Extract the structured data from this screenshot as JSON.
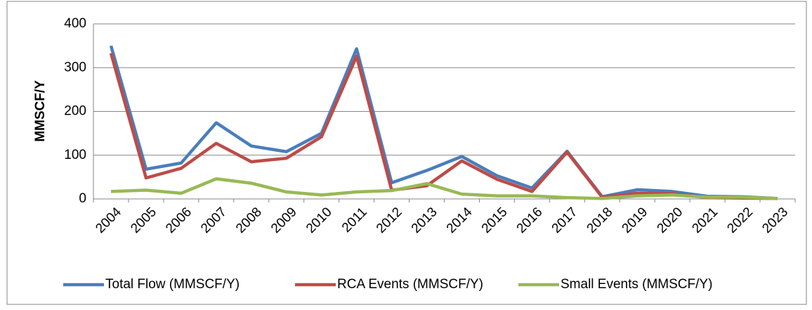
{
  "chart_data": {
    "type": "line",
    "y_label": "MMSCF/Y",
    "categories": [
      "2004",
      "2005",
      "2006",
      "2007",
      "2008",
      "2009",
      "2010",
      "2011",
      "2012",
      "2013",
      "2014",
      "2015",
      "2016",
      "2017",
      "2018",
      "2019",
      "2020",
      "2021",
      "2022",
      "2023"
    ],
    "series": [
      {
        "name": "Total Flow (MMSCF/Y)",
        "color": "#4a7ebb",
        "values": [
          350,
          68,
          82,
          174,
          121,
          108,
          150,
          343,
          37,
          65,
          97,
          53,
          25,
          109,
          5,
          21,
          17,
          6,
          5,
          1
        ]
      },
      {
        "name": "RCA Events (MMSCF/Y)",
        "color": "#be4b48",
        "values": [
          333,
          48,
          70,
          127,
          85,
          93,
          142,
          326,
          20,
          30,
          87,
          45,
          17,
          107,
          4,
          13,
          12,
          3,
          2,
          1
        ]
      },
      {
        "name": "Small Events (MMSCF/Y)",
        "color": "#98b954",
        "values": [
          17,
          20,
          13,
          46,
          36,
          16,
          9,
          16,
          19,
          35,
          11,
          7,
          7,
          3,
          1,
          7,
          9,
          4,
          4,
          1
        ]
      }
    ],
    "ylim": [
      0,
      400
    ],
    "yticks": [
      0,
      100,
      200,
      300,
      400
    ],
    "grid": true,
    "legend": "bottom"
  }
}
